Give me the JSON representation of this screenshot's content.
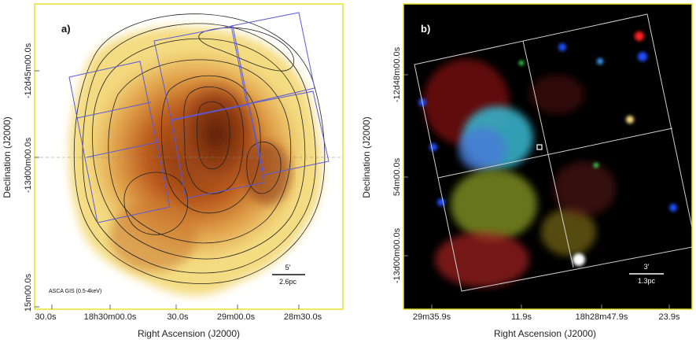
{
  "panel_a": {
    "label": "a)",
    "instrument_label": "ASCA GIS (0.5-4keV)",
    "scale_angle": "5'",
    "scale_physical": "2.6pc",
    "ylabel": "Declination (J2000)",
    "xlabel": "Right Ascension (J2000)",
    "ytick_labels": [
      "-12d45m00.0s",
      "-13d00m00.0s",
      "15m00.0s"
    ],
    "xtick_labels": [
      "30.0s",
      "18h30m00.0s",
      "30.0s",
      "29m00.0s",
      "28m30.0s"
    ],
    "colors": {
      "frame": "#e4e22a",
      "field_boxes": "#5a5ad8",
      "contours": "#222222",
      "emission": "#8a3a10"
    }
  },
  "panel_b": {
    "label": "b)",
    "scale_angle": "3'",
    "scale_physical": "1.3pc",
    "ylabel": "Declination (J2000)",
    "xlabel": "Right Ascension (J2000)",
    "ytick_labels": [
      "-12d48m00.0s",
      "54m00.0s",
      "-13d00m00.0s"
    ],
    "xtick_labels": [
      "29m35.9s",
      "11.9s",
      "18h28m47.9s",
      "23.9s"
    ],
    "colors": {
      "frame": "#e4e22a",
      "background": "#000000",
      "grid": "#c8c8c8"
    }
  }
}
